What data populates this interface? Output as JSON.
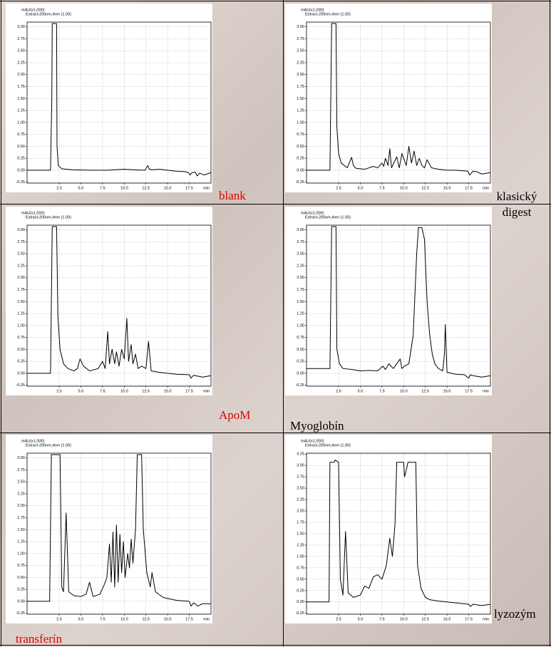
{
  "chart_data": [
    {
      "type": "line",
      "y_label": "mAU(x1,000)",
      "subtitle": "Extract-205nm,4nm (1.00)",
      "x_label": "min",
      "caption": "blank",
      "caption_color": "#e00000",
      "grid": true,
      "xlim": [
        -1.2,
        20
      ],
      "ylim": [
        -0.27,
        3.1
      ],
      "xticks": [
        2.5,
        {
          "value": 5,
          "label": "5.0"
        },
        7.5,
        {
          "value": 10,
          "label": "10.0"
        },
        12.5,
        {
          "value": 15,
          "label": "15.0"
        },
        17.5
      ],
      "yticks": [
        -0.25,
        {
          "value": 0,
          "label": "0.00"
        },
        0.25,
        {
          "value": 0.5,
          "label": "0.50"
        },
        0.75,
        {
          "value": 1,
          "label": "1.00"
        },
        1.25,
        {
          "value": 1.5,
          "label": "1.50"
        },
        1.75,
        {
          "value": 2,
          "label": "2.00"
        },
        2.25,
        {
          "value": 2.5,
          "label": "2.50"
        },
        2.75,
        {
          "value": 3,
          "label": "3.00"
        }
      ],
      "series": [
        {
          "color": "#000000",
          "x": [
            -1.2,
            1.5,
            1.65,
            1.7,
            2.2,
            2.25,
            2.4,
            2.8,
            4,
            6,
            8,
            10,
            11,
            12.4,
            12.7,
            12.9,
            13.2,
            14,
            15,
            16,
            17,
            17.4,
            17.6,
            17.8,
            18.2,
            18.4,
            18.7,
            19.2,
            20
          ],
          "values": [
            0.0,
            0.0,
            1.5,
            3.07,
            3.07,
            0.5,
            0.1,
            0.03,
            0.01,
            0.0,
            0.0,
            0.02,
            0.01,
            0.0,
            0.1,
            0.02,
            0.01,
            0.02,
            0.0,
            -0.02,
            -0.03,
            -0.05,
            -0.1,
            -0.05,
            -0.04,
            -0.12,
            -0.06,
            -0.1,
            -0.05
          ]
        }
      ]
    },
    {
      "type": "line",
      "y_label": "mAU(x1,000)",
      "subtitle": "Extract-205nm,4nm (1.00)",
      "x_label": "min",
      "caption": "klasický digest",
      "caption_color": "#000000",
      "grid": true,
      "xlim": [
        -1.2,
        20
      ],
      "ylim": [
        -0.27,
        3.1
      ],
      "xticks": [
        2.5,
        {
          "value": 5,
          "label": "5.0"
        },
        7.5,
        {
          "value": 10,
          "label": "10.0"
        },
        12.5,
        {
          "value": 15,
          "label": "15.0"
        },
        17.5
      ],
      "yticks": [
        -0.25,
        {
          "value": 0,
          "label": "0.00"
        },
        0.25,
        {
          "value": 0.5,
          "label": "0.50"
        },
        0.75,
        {
          "value": 1,
          "label": "1.00"
        },
        1.25,
        {
          "value": 1.5,
          "label": "1.50"
        },
        1.75,
        {
          "value": 2,
          "label": "2.00"
        },
        2.25,
        {
          "value": 2.5,
          "label": "2.50"
        },
        2.75,
        {
          "value": 3,
          "label": "3.00"
        }
      ],
      "series": [
        {
          "color": "#000000",
          "x": [
            -1.2,
            1.5,
            1.7,
            2.2,
            2.3,
            2.5,
            2.8,
            3.5,
            4.0,
            4.2,
            4.5,
            5.5,
            6.5,
            7.0,
            7.5,
            7.7,
            7.9,
            8.2,
            8.4,
            8.6,
            9.2,
            9.5,
            9.8,
            10.3,
            10.6,
            10.9,
            11.2,
            11.5,
            11.8,
            12.1,
            12.4,
            12.7,
            13.2,
            14,
            15,
            16,
            17.4,
            17.6,
            18,
            18.4,
            19,
            20
          ],
          "values": [
            0,
            0,
            3.07,
            3.07,
            0.9,
            0.35,
            0.15,
            0.05,
            0.27,
            0.1,
            0.04,
            0.02,
            0.08,
            0.05,
            0.15,
            0.08,
            0.25,
            0.1,
            0.45,
            0.05,
            0.28,
            0.05,
            0.35,
            0.1,
            0.5,
            0.15,
            0.4,
            0.1,
            0.25,
            0.1,
            0.05,
            0.22,
            0.05,
            0.02,
            0.0,
            0.0,
            -0.02,
            -0.1,
            -0.02,
            -0.03,
            -0.08,
            -0.05
          ]
        }
      ]
    },
    {
      "type": "line",
      "y_label": "mAU(x1,000)",
      "subtitle": "Extract-205nm,4nm (1.00)",
      "x_label": "min",
      "caption": "ApoM",
      "caption_color": "#e00000",
      "grid": true,
      "xlim": [
        -1.2,
        20
      ],
      "ylim": [
        -0.27,
        3.1
      ],
      "xticks": [
        2.5,
        {
          "value": 5,
          "label": "5.0"
        },
        7.5,
        {
          "value": 10,
          "label": "10.0"
        },
        12.5,
        {
          "value": 15,
          "label": "15.0"
        },
        17.5
      ],
      "yticks": [
        -0.25,
        {
          "value": 0,
          "label": "0.00"
        },
        0.25,
        {
          "value": 0.5,
          "label": "0.50"
        },
        0.75,
        {
          "value": 1,
          "label": "1.00"
        },
        1.25,
        {
          "value": 1.5,
          "label": "1.50"
        },
        1.75,
        {
          "value": 2,
          "label": "2.00"
        },
        2.25,
        {
          "value": 2.5,
          "label": "2.50"
        },
        2.75,
        {
          "value": 3,
          "label": "3.00"
        }
      ],
      "series": [
        {
          "color": "#000000",
          "x": [
            -1.2,
            1.5,
            1.7,
            2.2,
            2.35,
            2.6,
            3.0,
            3.5,
            4.2,
            4.6,
            4.9,
            5.3,
            6,
            7,
            7.5,
            7.8,
            8.1,
            8.3,
            8.6,
            8.9,
            9.1,
            9.4,
            9.7,
            10.0,
            10.3,
            10.5,
            10.8,
            11.0,
            11.3,
            11.6,
            12.0,
            12.5,
            12.8,
            13.1,
            14,
            15,
            16,
            17.5,
            17.7,
            18,
            19,
            20
          ],
          "values": [
            0,
            0,
            3.07,
            3.07,
            1.2,
            0.5,
            0.2,
            0.1,
            0.05,
            0.1,
            0.3,
            0.15,
            0.05,
            0.1,
            0.25,
            0.1,
            0.87,
            0.2,
            0.5,
            0.2,
            0.45,
            0.15,
            0.5,
            0.3,
            1.15,
            0.25,
            0.6,
            0.2,
            0.4,
            0.1,
            0.15,
            0.1,
            0.67,
            0.05,
            0.02,
            0.0,
            -0.02,
            -0.03,
            -0.1,
            -0.04,
            -0.08,
            -0.05
          ]
        }
      ]
    },
    {
      "type": "line",
      "y_label": "mAU(x1,000)",
      "subtitle": "Extract-205nm,4nm (1.00)",
      "x_label": "min",
      "caption": "Myoglobín",
      "caption_color": "#000000",
      "grid": true,
      "xlim": [
        -1.2,
        20
      ],
      "ylim": [
        -0.27,
        3.1
      ],
      "xticks": [
        2.5,
        {
          "value": 5,
          "label": "5.0"
        },
        7.5,
        {
          "value": 10,
          "label": "10.0"
        },
        12.5,
        {
          "value": 15,
          "label": "15.0"
        },
        17.5
      ],
      "yticks": [
        -0.25,
        {
          "value": 0,
          "label": "0.00"
        },
        0.25,
        {
          "value": 0.5,
          "label": "0.50"
        },
        0.75,
        {
          "value": 1,
          "label": "1.00"
        },
        1.25,
        {
          "value": 1.5,
          "label": "1.50"
        },
        1.75,
        {
          "value": 2,
          "label": "2.00"
        },
        2.25,
        {
          "value": 2.5,
          "label": "2.50"
        },
        2.75,
        {
          "value": 3,
          "label": "3.00"
        }
      ],
      "series": [
        {
          "color": "#000000",
          "x": [
            -1.2,
            1.5,
            1.7,
            2.2,
            2.3,
            2.6,
            3,
            4,
            5,
            6,
            7,
            7.6,
            7.9,
            8.3,
            8.8,
            9.2,
            9.6,
            9.8,
            10.1,
            10.6,
            11.1,
            11.5,
            11.7,
            12.1,
            12.4,
            12.7,
            13,
            13.3,
            13.6,
            14,
            14.5,
            14.7,
            14.8,
            15,
            15.5,
            16,
            17,
            17.5,
            17.7,
            18,
            19,
            20
          ],
          "values": [
            0.1,
            0.1,
            3.07,
            3.07,
            0.5,
            0.2,
            0.1,
            0.08,
            0.05,
            0.06,
            0.05,
            0.15,
            0.08,
            0.2,
            0.1,
            0.2,
            0.3,
            0.1,
            0.15,
            0.2,
            0.8,
            2.5,
            3.05,
            3.05,
            2.8,
            1.5,
            0.8,
            0.4,
            0.2,
            0.1,
            0.05,
            0.4,
            1.02,
            0.02,
            0.0,
            -0.02,
            -0.03,
            -0.1,
            -0.03,
            -0.05,
            -0.08,
            -0.05
          ]
        }
      ]
    },
    {
      "type": "line",
      "y_label": "mAU(x1,000)",
      "subtitle": "Extract-205nm,4nm (1.00)",
      "x_label": "min",
      "caption": "transferín",
      "caption_color": "#e00000",
      "grid": true,
      "xlim": [
        -1.2,
        20
      ],
      "ylim": [
        -0.27,
        3.1
      ],
      "xticks": [
        2.5,
        {
          "value": 5,
          "label": "5.0"
        },
        7.5,
        {
          "value": 10,
          "label": "10.0"
        },
        12.5,
        {
          "value": 15,
          "label": "15.0"
        },
        17.5
      ],
      "yticks": [
        -0.25,
        {
          "value": 0,
          "label": "0.00"
        },
        0.25,
        {
          "value": 0.5,
          "label": "0.50"
        },
        0.75,
        {
          "value": 1,
          "label": "1.00"
        },
        1.25,
        {
          "value": 1.5,
          "label": "1.50"
        },
        1.75,
        {
          "value": 2,
          "label": "2.00"
        },
        2.25,
        {
          "value": 2.5,
          "label": "2.50"
        },
        2.75,
        {
          "value": 3,
          "label": "3.00"
        }
      ],
      "series": [
        {
          "color": "#000000",
          "x": [
            -1.2,
            1.4,
            1.6,
            2.6,
            2.8,
            3.0,
            3.3,
            3.6,
            4.2,
            5,
            5.6,
            6,
            6.4,
            7.2,
            7.7,
            8.0,
            8.3,
            8.5,
            8.7,
            8.9,
            9.1,
            9.3,
            9.5,
            9.7,
            9.9,
            10.1,
            10.4,
            10.6,
            10.8,
            11.0,
            11.3,
            11.5,
            12.0,
            12.2,
            12.6,
            13.0,
            13.2,
            13.6,
            14.5,
            16,
            17.5,
            17.7,
            18,
            18.5,
            19,
            20
          ],
          "values": [
            0,
            0,
            3.07,
            3.07,
            0.3,
            0.2,
            1.85,
            0.2,
            0.12,
            0.1,
            0.15,
            0.4,
            0.1,
            0.15,
            0.35,
            0.5,
            1.2,
            0.4,
            1.45,
            0.3,
            1.6,
            0.4,
            1.4,
            0.6,
            1.25,
            0.5,
            1.0,
            0.7,
            1.3,
            0.8,
            1.5,
            3.07,
            3.07,
            1.5,
            0.6,
            0.3,
            0.6,
            0.2,
            0.08,
            0.02,
            0.0,
            -0.1,
            -0.03,
            -0.1,
            -0.05,
            -0.05
          ]
        }
      ]
    },
    {
      "type": "line",
      "y_label": "mAU(x1,000)",
      "subtitle": "Extract-205nm,4nm (1.00)",
      "x_label": "min",
      "caption": "lyzozým",
      "caption_color": "#000000",
      "grid": true,
      "xlim": [
        -1.2,
        20
      ],
      "ylim": [
        -0.27,
        3.27
      ],
      "xticks": [
        2.5,
        {
          "value": 5,
          "label": "5.0"
        },
        7.5,
        {
          "value": 10,
          "label": "10.0"
        },
        12.5,
        {
          "value": 15,
          "label": "15.0"
        },
        17.5
      ],
      "yticks": [
        -0.25,
        {
          "value": 0,
          "label": "0.00"
        },
        0.25,
        {
          "value": 0.5,
          "label": "0.50"
        },
        0.75,
        {
          "value": 1,
          "label": "1.00"
        },
        1.25,
        {
          "value": 1.5,
          "label": "1.50"
        },
        1.75,
        {
          "value": 2,
          "label": "2.00"
        },
        2.25,
        {
          "value": 2.5,
          "label": "2.50"
        },
        2.75,
        {
          "value": 3,
          "label": "3.00"
        },
        3.25
      ],
      "series": [
        {
          "color": "#000000",
          "x": [
            -1.2,
            1.4,
            1.5,
            2.0,
            2.1,
            2.5,
            2.7,
            3.0,
            3.3,
            3.6,
            4.2,
            5,
            5.5,
            6,
            6.5,
            7,
            7.5,
            8,
            8.4,
            8.7,
            9.0,
            9.2,
            10.0,
            10.1,
            10.3,
            10.5,
            11.4,
            11.6,
            12.0,
            12.5,
            13,
            14,
            15,
            16,
            17.5,
            17.7,
            18,
            19,
            20
          ],
          "values": [
            0,
            0,
            3.07,
            3.07,
            3.12,
            3.07,
            0.5,
            0.15,
            1.55,
            0.2,
            0.1,
            0.15,
            0.35,
            0.3,
            0.55,
            0.6,
            0.5,
            0.8,
            1.4,
            1.0,
            1.7,
            3.07,
            3.07,
            2.75,
            2.9,
            3.07,
            3.07,
            0.8,
            0.3,
            0.1,
            0.05,
            0.02,
            0.0,
            -0.02,
            -0.05,
            -0.1,
            -0.05,
            -0.08,
            -0.05
          ]
        }
      ]
    }
  ]
}
